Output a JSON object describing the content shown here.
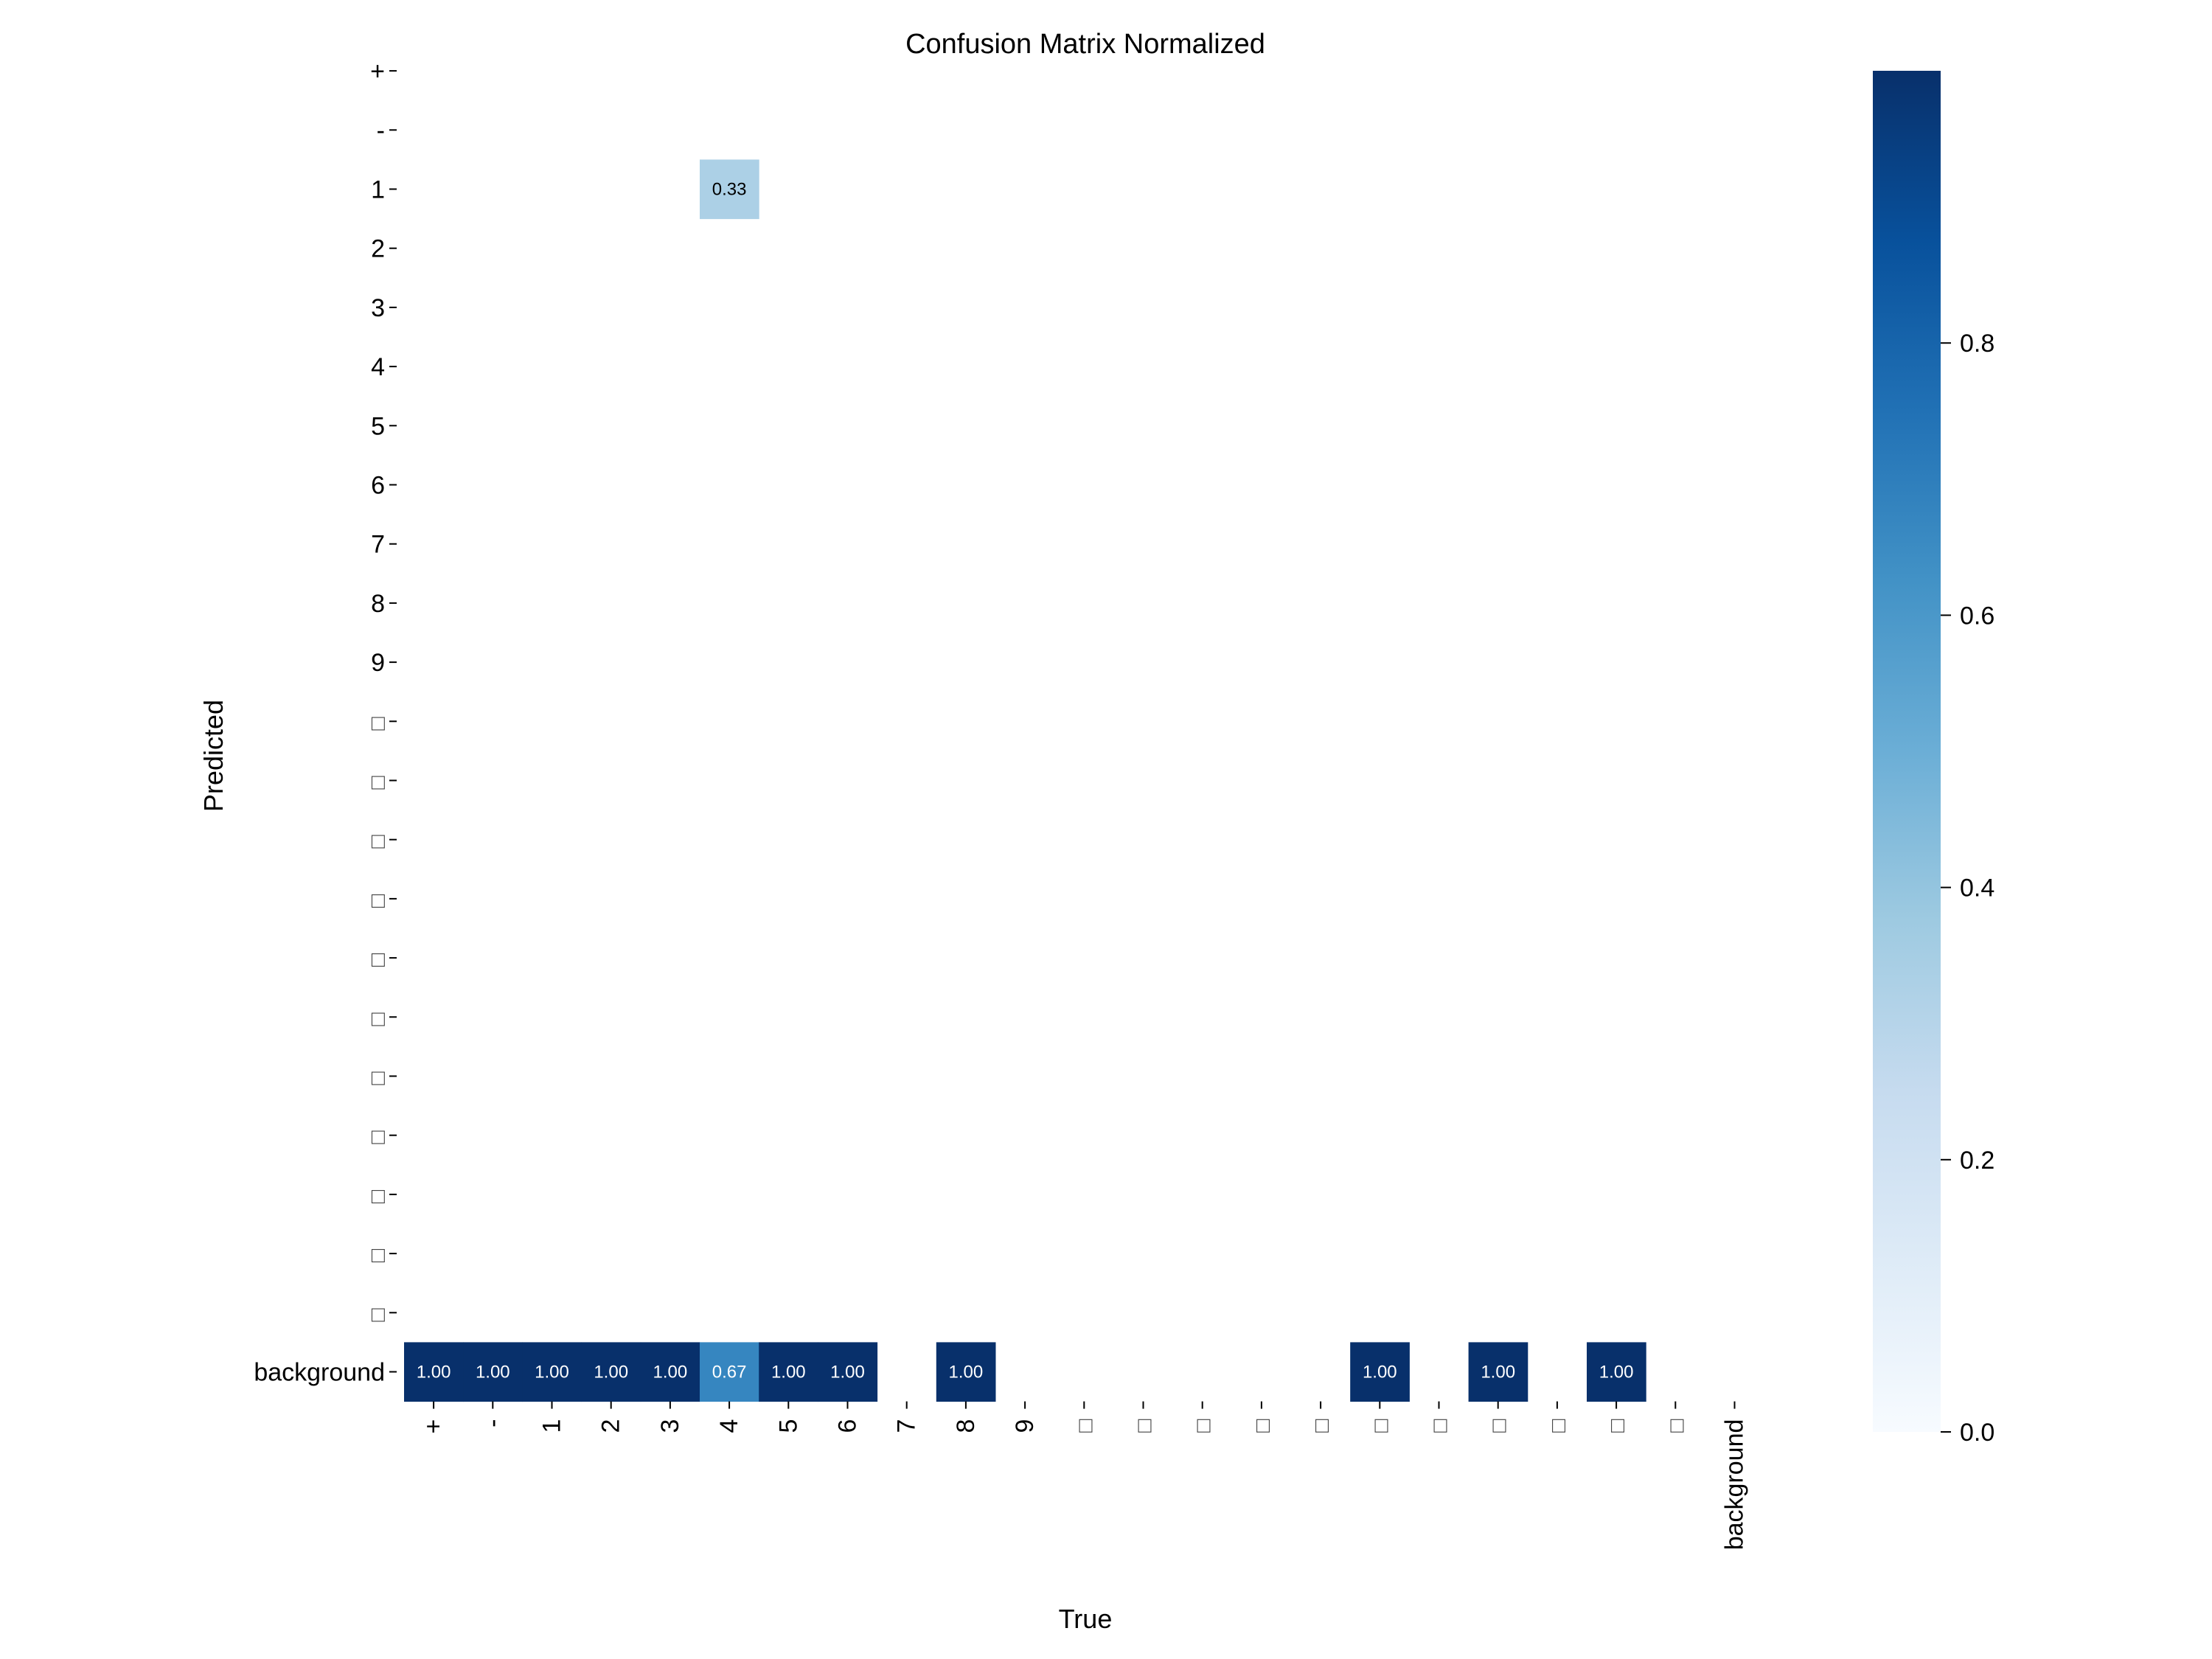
{
  "chart_data": {
    "type": "heatmap",
    "title": "Confusion Matrix Normalized",
    "xlabel": "True",
    "ylabel": "Predicted",
    "colormap": "Blues",
    "colorbar": {
      "range": [
        0,
        1
      ],
      "ticks": [
        "0.0",
        "0.2",
        "0.4",
        "0.6",
        "0.8"
      ]
    },
    "x_categories": [
      "+",
      "-",
      "1",
      "2",
      "3",
      "4",
      "5",
      "6",
      "7",
      "8",
      "9",
      "□",
      "□",
      "□",
      "□",
      "□",
      "□",
      "□",
      "□",
      "□",
      "□",
      "□",
      "background"
    ],
    "y_categories": [
      "+",
      "-",
      "1",
      "2",
      "3",
      "4",
      "5",
      "6",
      "7",
      "8",
      "9",
      "□",
      "□",
      "□",
      "□",
      "□",
      "□",
      "□",
      "□",
      "□",
      "□",
      "□",
      "background"
    ],
    "cells": [
      {
        "row": 2,
        "col": 5,
        "value": 0.33,
        "label": "0.33"
      },
      {
        "row": 22,
        "col": 0,
        "value": 1.0,
        "label": "1.00"
      },
      {
        "row": 22,
        "col": 1,
        "value": 1.0,
        "label": "1.00"
      },
      {
        "row": 22,
        "col": 2,
        "value": 1.0,
        "label": "1.00"
      },
      {
        "row": 22,
        "col": 3,
        "value": 1.0,
        "label": "1.00"
      },
      {
        "row": 22,
        "col": 4,
        "value": 1.0,
        "label": "1.00"
      },
      {
        "row": 22,
        "col": 5,
        "value": 0.67,
        "label": "0.67"
      },
      {
        "row": 22,
        "col": 6,
        "value": 1.0,
        "label": "1.00"
      },
      {
        "row": 22,
        "col": 7,
        "value": 1.0,
        "label": "1.00"
      },
      {
        "row": 22,
        "col": 9,
        "value": 1.0,
        "label": "1.00"
      },
      {
        "row": 22,
        "col": 16,
        "value": 1.0,
        "label": "1.00"
      },
      {
        "row": 22,
        "col": 18,
        "value": 1.0,
        "label": "1.00"
      },
      {
        "row": 22,
        "col": 20,
        "value": 1.0,
        "label": "1.00"
      }
    ]
  }
}
